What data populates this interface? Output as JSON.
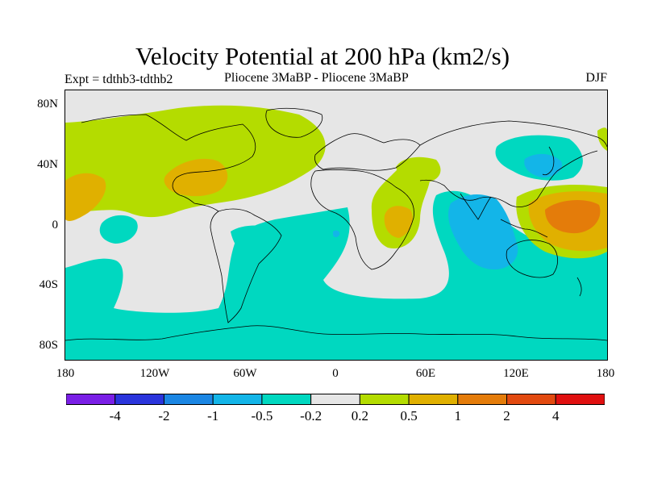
{
  "title": "Velocity Potential at 200 hPa (km2/s)",
  "subtitle_left": "Expt = tdthb3-tdthb2",
  "subtitle_center": "Pliocene   3MaBP - Pliocene   3MaBP",
  "subtitle_right": "DJF",
  "lat_labels": [
    "80N",
    "40N",
    "0",
    "40S",
    "80S"
  ],
  "lon_labels": [
    "180",
    "120W",
    "60W",
    "0",
    "60E",
    "120E",
    "180"
  ],
  "colorbar": {
    "colors": [
      "#7a1fe6",
      "#2a35dc",
      "#1b86e3",
      "#13b5e8",
      "#00d8c0",
      "#e6e6e6",
      "#b4dc00",
      "#e0b000",
      "#e47c0a",
      "#e24a10",
      "#e01010"
    ],
    "labels": [
      "-4",
      "-2",
      "-1",
      "-0.5",
      "-0.2",
      "0.2",
      "0.5",
      "1",
      "2",
      "4"
    ]
  },
  "map": {
    "background_color": "#e6e6e6",
    "coastline_color": "#000000"
  }
}
